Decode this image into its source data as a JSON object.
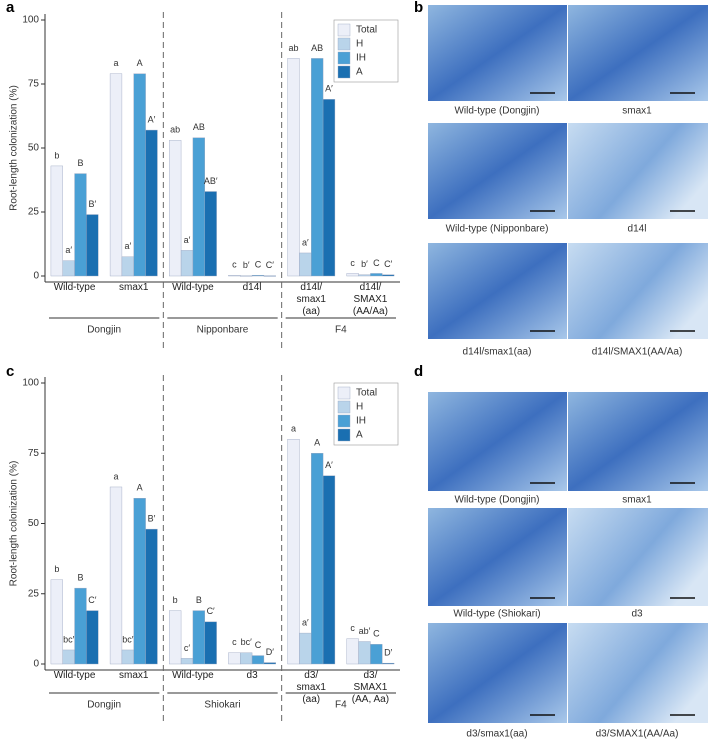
{
  "chart_data": [
    {
      "type": "bar",
      "label": "a",
      "ylabel": "Root-length colonization (%)",
      "categories": [
        "Wild-type",
        "smax1",
        "Wild-type",
        "d14l",
        "d14l/\nsmax1\n(aa)",
        "d14l/\nSMAX1\n(AA/Aa)"
      ],
      "groups": [
        "Dongjin",
        "Nipponbare",
        "F4"
      ],
      "ylim": [
        0,
        100
      ],
      "yticks": [
        0,
        25,
        50,
        75,
        100
      ],
      "legend": "top-right",
      "series": [
        {
          "name": "Total",
          "color": "#eceff8",
          "values": [
            43,
            79,
            53,
            0.3,
            85,
            1
          ],
          "letters": [
            "b",
            "a",
            "ab",
            "c",
            "ab",
            "c"
          ]
        },
        {
          "name": "H",
          "color": "#b9d4ea",
          "values": [
            6,
            7.5,
            10,
            0.1,
            9,
            0.5
          ],
          "letters": [
            "a′",
            "a′",
            "a′",
            "b′",
            "a′",
            "b′"
          ]
        },
        {
          "name": "IH",
          "color": "#4aa0d5",
          "values": [
            40,
            79,
            54,
            0.3,
            85,
            1
          ],
          "letters": [
            "B",
            "A",
            "AB",
            "C",
            "AB",
            "C"
          ]
        },
        {
          "name": "A",
          "color": "#1a6fb1",
          "values": [
            24,
            57,
            33,
            0.1,
            69,
            0.5
          ],
          "letters": [
            "B′",
            "A′",
            "AB′",
            "C′",
            "A′",
            "C′"
          ]
        }
      ]
    },
    {
      "type": "bar",
      "label": "c",
      "ylabel": "Root-length colonization (%)",
      "categories": [
        "Wild-type",
        "smax1",
        "Wild-type",
        "d3",
        "d3/\nsmax1\n(aa)",
        "d3/\nSMAX1\n(AA, Aa)"
      ],
      "groups": [
        "Dongjin",
        "Shiokari",
        "F4"
      ],
      "ylim": [
        0,
        100
      ],
      "yticks": [
        0,
        25,
        50,
        75,
        100
      ],
      "legend": "top-right",
      "series": [
        {
          "name": "Total",
          "color": "#eceff8",
          "values": [
            30,
            63,
            19,
            4,
            80,
            9
          ],
          "letters": [
            "b",
            "a",
            "b",
            "c",
            "a",
            "c"
          ]
        },
        {
          "name": "H",
          "color": "#b9d4ea",
          "values": [
            5,
            5,
            2,
            4,
            11,
            8
          ],
          "letters": [
            "bc′",
            "bc′",
            "c′",
            "bc′",
            "a′",
            "ab′"
          ]
        },
        {
          "name": "IH",
          "color": "#4aa0d5",
          "values": [
            27,
            59,
            19,
            3,
            75,
            7
          ],
          "letters": [
            "B",
            "A",
            "B",
            "C",
            "A",
            "C"
          ]
        },
        {
          "name": "A",
          "color": "#1a6fb1",
          "values": [
            19,
            48,
            15,
            0.5,
            67,
            0.3
          ],
          "letters": [
            "C′",
            "B′",
            "C′",
            "D′",
            "A′",
            "D′"
          ]
        }
      ]
    }
  ],
  "panels": {
    "b": {
      "label": "b",
      "captions": [
        "Wild-type (Dongjin)",
        "smax1",
        "Wild-type (Nipponbare)",
        "d14l",
        "d14l/smax1(aa)",
        "d14l/SMAX1(AA/Aa)"
      ]
    },
    "d": {
      "label": "d",
      "captions": [
        "Wild-type (Dongjin)",
        "smax1",
        "Wild-type (Shiokari)",
        "d3",
        "d3/smax1(aa)",
        "d3/SMAX1(AA/Aa)"
      ]
    }
  }
}
